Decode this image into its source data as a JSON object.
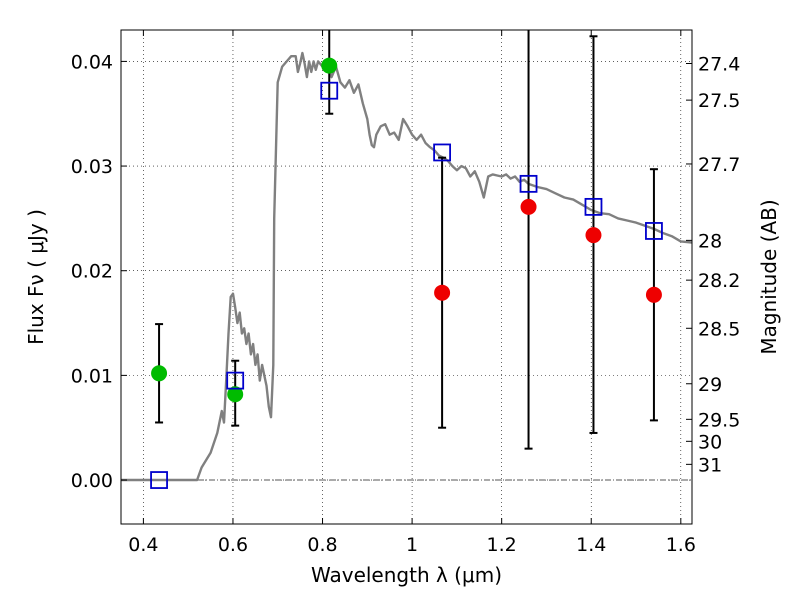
{
  "chart_data": {
    "type": "scatter",
    "xlabel": "Wavelength  λ (μm)",
    "ylabel": "Flux  Fν  ( μJy )",
    "y2label": "Magnitude (AB)",
    "xlim": [
      0.35,
      1.625
    ],
    "ylim": [
      -0.0042,
      0.043
    ],
    "grid": true,
    "xticks": [
      {
        "value": 0.4,
        "label": "0.4"
      },
      {
        "value": 0.6,
        "label": "0.6"
      },
      {
        "value": 0.8,
        "label": "0.8"
      },
      {
        "value": 1.0,
        "label": "1"
      },
      {
        "value": 1.2,
        "label": "1.2"
      },
      {
        "value": 1.4,
        "label": "1.4"
      },
      {
        "value": 1.6,
        "label": "1.6"
      }
    ],
    "yticks": [
      {
        "value": 0.0,
        "label": "0.00"
      },
      {
        "value": 0.01,
        "label": "0.01"
      },
      {
        "value": 0.02,
        "label": "0.02"
      },
      {
        "value": 0.03,
        "label": "0.03"
      },
      {
        "value": 0.04,
        "label": "0.04"
      }
    ],
    "y2ticks": [
      {
        "flux": 0.0398,
        "label": "27.4"
      },
      {
        "flux": 0.0363,
        "label": "27.5"
      },
      {
        "flux": 0.0302,
        "label": "27.7"
      },
      {
        "flux": 0.0229,
        "label": "28"
      },
      {
        "flux": 0.0191,
        "label": "28.2"
      },
      {
        "flux": 0.0145,
        "label": "28.5"
      },
      {
        "flux": 0.0092,
        "label": "29"
      },
      {
        "flux": 0.0058,
        "label": "29.5"
      },
      {
        "flux": 0.0037,
        "label": "30"
      },
      {
        "flux": 0.0015,
        "label": "31"
      }
    ],
    "model_spectrum": {
      "color": "#808080",
      "points": [
        [
          0.35,
          0.0
        ],
        [
          0.52,
          0.0
        ],
        [
          0.53,
          0.0012
        ],
        [
          0.55,
          0.0026
        ],
        [
          0.565,
          0.0045
        ],
        [
          0.575,
          0.0066
        ],
        [
          0.58,
          0.0055
        ],
        [
          0.585,
          0.0095
        ],
        [
          0.59,
          0.014
        ],
        [
          0.595,
          0.0175
        ],
        [
          0.6,
          0.0178
        ],
        [
          0.605,
          0.0165
        ],
        [
          0.61,
          0.015
        ],
        [
          0.615,
          0.016
        ],
        [
          0.62,
          0.014
        ],
        [
          0.625,
          0.0145
        ],
        [
          0.63,
          0.013
        ],
        [
          0.635,
          0.014
        ],
        [
          0.64,
          0.012
        ],
        [
          0.645,
          0.013
        ],
        [
          0.65,
          0.011
        ],
        [
          0.655,
          0.012
        ],
        [
          0.66,
          0.0095
        ],
        [
          0.665,
          0.011
        ],
        [
          0.67,
          0.01
        ],
        [
          0.675,
          0.009
        ],
        [
          0.68,
          0.007
        ],
        [
          0.685,
          0.006
        ],
        [
          0.69,
          0.011
        ],
        [
          0.692,
          0.025
        ],
        [
          0.7,
          0.038
        ],
        [
          0.71,
          0.0395
        ],
        [
          0.72,
          0.04
        ],
        [
          0.73,
          0.0405
        ],
        [
          0.74,
          0.0405
        ],
        [
          0.745,
          0.039
        ],
        [
          0.75,
          0.0398
        ],
        [
          0.755,
          0.0408
        ],
        [
          0.76,
          0.0398
        ],
        [
          0.765,
          0.0385
        ],
        [
          0.77,
          0.04
        ],
        [
          0.775,
          0.039
        ],
        [
          0.78,
          0.04
        ],
        [
          0.785,
          0.0392
        ],
        [
          0.79,
          0.04
        ],
        [
          0.8,
          0.0395
        ],
        [
          0.81,
          0.0398
        ],
        [
          0.82,
          0.0385
        ],
        [
          0.83,
          0.0395
        ],
        [
          0.84,
          0.038
        ],
        [
          0.85,
          0.0375
        ],
        [
          0.86,
          0.0382
        ],
        [
          0.87,
          0.037
        ],
        [
          0.88,
          0.0378
        ],
        [
          0.89,
          0.036
        ],
        [
          0.9,
          0.0345
        ],
        [
          0.905,
          0.033
        ],
        [
          0.91,
          0.032
        ],
        [
          0.915,
          0.0318
        ],
        [
          0.92,
          0.033
        ],
        [
          0.93,
          0.0338
        ],
        [
          0.94,
          0.034
        ],
        [
          0.95,
          0.033
        ],
        [
          0.96,
          0.0332
        ],
        [
          0.97,
          0.0325
        ],
        [
          0.975,
          0.0335
        ],
        [
          0.98,
          0.0345
        ],
        [
          0.99,
          0.0338
        ],
        [
          1.0,
          0.033
        ],
        [
          1.01,
          0.0325
        ],
        [
          1.02,
          0.033
        ],
        [
          1.03,
          0.0322
        ],
        [
          1.04,
          0.0318
        ],
        [
          1.05,
          0.0315
        ],
        [
          1.06,
          0.031
        ],
        [
          1.07,
          0.0308
        ],
        [
          1.08,
          0.0305
        ],
        [
          1.09,
          0.03
        ],
        [
          1.1,
          0.0296
        ],
        [
          1.11,
          0.03
        ],
        [
          1.12,
          0.0298
        ],
        [
          1.13,
          0.029
        ],
        [
          1.14,
          0.0295
        ],
        [
          1.15,
          0.0285
        ],
        [
          1.16,
          0.027
        ],
        [
          1.17,
          0.029
        ],
        [
          1.18,
          0.0292
        ],
        [
          1.19,
          0.0291
        ],
        [
          1.2,
          0.029
        ],
        [
          1.21,
          0.0292
        ],
        [
          1.22,
          0.0288
        ],
        [
          1.23,
          0.029
        ],
        [
          1.24,
          0.0285
        ],
        [
          1.25,
          0.0287
        ],
        [
          1.26,
          0.0283
        ],
        [
          1.28,
          0.028
        ],
        [
          1.3,
          0.0278
        ],
        [
          1.32,
          0.0274
        ],
        [
          1.34,
          0.027
        ],
        [
          1.36,
          0.0268
        ],
        [
          1.38,
          0.0263
        ],
        [
          1.4,
          0.0258
        ],
        [
          1.42,
          0.0255
        ],
        [
          1.44,
          0.0254
        ],
        [
          1.46,
          0.025
        ],
        [
          1.48,
          0.0248
        ],
        [
          1.5,
          0.0246
        ],
        [
          1.52,
          0.0243
        ],
        [
          1.54,
          0.024
        ],
        [
          1.56,
          0.0236
        ],
        [
          1.58,
          0.0233
        ],
        [
          1.6,
          0.0228
        ],
        [
          1.625,
          0.0227
        ]
      ]
    },
    "model_points": {
      "color": "#0000cc",
      "points": [
        [
          0.435,
          0.0
        ],
        [
          0.605,
          0.0095
        ],
        [
          0.815,
          0.0372
        ],
        [
          1.067,
          0.0313
        ],
        [
          1.26,
          0.0283
        ],
        [
          1.405,
          0.0261
        ],
        [
          1.54,
          0.0238
        ]
      ]
    },
    "green_points": {
      "color": "#00bb00",
      "points": [
        {
          "x": 0.435,
          "y": 0.0102,
          "lo": 0.0055,
          "hi": 0.0149
        },
        {
          "x": 0.605,
          "y": 0.0082,
          "lo": 0.0052,
          "hi": 0.0114
        },
        {
          "x": 0.815,
          "y": 0.0396,
          "lo": 0.035,
          "hi": 0.043
        }
      ]
    },
    "red_points": {
      "color": "#ee0000",
      "points": [
        {
          "x": 1.067,
          "y": 0.0179,
          "lo": 0.005,
          "hi": 0.0308
        },
        {
          "x": 1.26,
          "y": 0.0261,
          "lo": 0.003,
          "hi": 0.043
        },
        {
          "x": 1.405,
          "y": 0.0234,
          "lo": 0.0045,
          "hi": 0.0424
        },
        {
          "x": 1.54,
          "y": 0.0177,
          "lo": 0.0057,
          "hi": 0.0297
        }
      ]
    }
  }
}
